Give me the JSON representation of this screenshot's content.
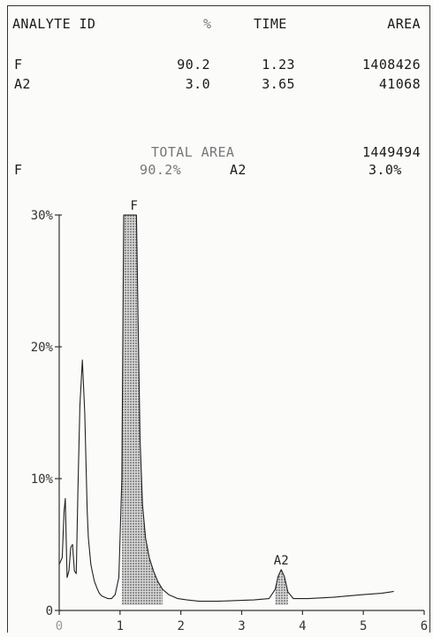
{
  "report": {
    "headers": {
      "id": "ANALYTE ID",
      "pct": "%",
      "time": "TIME",
      "area": "AREA"
    },
    "rows": [
      {
        "id": "F",
        "pct": "90.2",
        "time": "1.23",
        "area": "1408426"
      },
      {
        "id": "A2",
        "pct": "3.0",
        "time": "3.65",
        "area": "41068"
      }
    ],
    "total_label": "TOTAL AREA",
    "total_value": "1449494",
    "summary": [
      {
        "id": "F",
        "pct": "90.2%"
      },
      {
        "id": "A2",
        "pct": "3.0%"
      }
    ]
  },
  "chart_data": {
    "type": "line",
    "title": "",
    "xlabel": "",
    "ylabel": "",
    "xlim": [
      0,
      6
    ],
    "ylim": [
      0,
      30
    ],
    "x_ticks": [
      "0",
      "1",
      "2",
      "3",
      "4",
      "5",
      "6"
    ],
    "y_ticks": [
      "0",
      "10%",
      "20%",
      "30%"
    ],
    "peak_labels": [
      {
        "label": "F",
        "x": 1.23
      },
      {
        "label": "A2",
        "x": 3.65
      }
    ],
    "series": [
      {
        "x": [
          0.0,
          0.05,
          0.08,
          0.1,
          0.13,
          0.16,
          0.19,
          0.22,
          0.25,
          0.28,
          0.31,
          0.34,
          0.38,
          0.42,
          0.46,
          0.48,
          0.5,
          0.52,
          0.55,
          0.58,
          0.62,
          0.66,
          0.7,
          0.75,
          0.8,
          0.86,
          0.92,
          0.98,
          1.03,
          1.06,
          1.1,
          1.13,
          1.16,
          1.2,
          1.23,
          1.27,
          1.3,
          1.33,
          1.37,
          1.42,
          1.48,
          1.55,
          1.62,
          1.7,
          1.8,
          1.95,
          2.1,
          2.3,
          2.6,
          2.9,
          3.2,
          3.45,
          3.55,
          3.6,
          3.65,
          3.7,
          3.76,
          3.85,
          4.1,
          4.5,
          5.0,
          5.3,
          5.45,
          5.5
        ],
        "values": [
          3.5,
          4.0,
          7.5,
          8.5,
          2.5,
          3.0,
          4.8,
          5.0,
          3.0,
          2.8,
          9.5,
          15.5,
          19.0,
          15.0,
          7.5,
          5.5,
          4.5,
          3.5,
          2.8,
          2.2,
          1.7,
          1.3,
          1.1,
          1.0,
          0.9,
          0.9,
          1.2,
          2.5,
          10.0,
          30.0,
          30.0,
          30.0,
          30.0,
          30.0,
          30.0,
          30.0,
          21.0,
          13.0,
          8.0,
          5.5,
          4.0,
          3.0,
          2.2,
          1.6,
          1.2,
          0.9,
          0.8,
          0.7,
          0.7,
          0.75,
          0.8,
          0.9,
          1.6,
          2.6,
          3.1,
          2.6,
          1.4,
          0.9,
          0.9,
          1.0,
          1.2,
          1.3,
          1.4,
          1.45
        ]
      }
    ],
    "shaded_regions": [
      {
        "label": "F",
        "x": [
          1.0,
          1.75
        ]
      },
      {
        "label": "A2",
        "x": [
          3.5,
          3.8
        ]
      }
    ]
  }
}
